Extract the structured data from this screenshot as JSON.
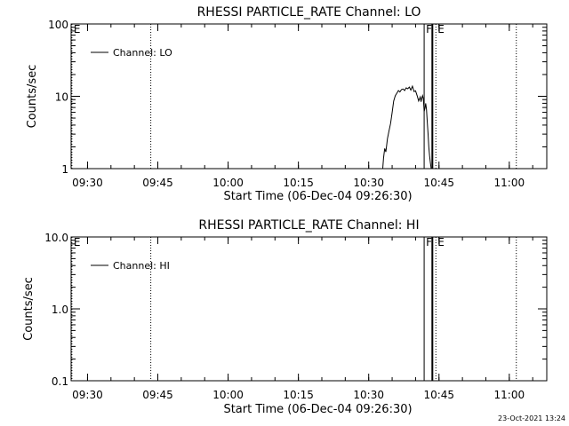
{
  "footer": {
    "timestamp": "23-Oct-2021 13:24"
  },
  "chart_data": [
    {
      "type": "line",
      "title": "RHESSI PARTICLE_RATE Channel: LO",
      "xlabel": "Start Time (06-Dec-04 09:26:30)",
      "ylabel": "Counts/sec",
      "y_scale": "log",
      "xlim": [
        "09:26:30",
        "11:08:00"
      ],
      "ylim": [
        1,
        100
      ],
      "x_ticks": [
        "09:30",
        "09:45",
        "10:00",
        "10:15",
        "10:30",
        "10:45",
        "11:00"
      ],
      "y_ticks": [
        {
          "value": 1,
          "label": "1"
        },
        {
          "value": 10,
          "label": "10"
        },
        {
          "value": 100,
          "label": "100"
        }
      ],
      "legend": {
        "position": "top-left",
        "entries": [
          "Channel: LO"
        ]
      },
      "grid": false,
      "markers": [
        {
          "time": "09:26:40",
          "style": "dotted",
          "label": "E"
        },
        {
          "time": "09:43:30",
          "style": "dotted",
          "label": ""
        },
        {
          "time": "10:41:50",
          "style": "solid",
          "label": "F"
        },
        {
          "time": "10:43:35",
          "style": "solid-thick",
          "label": ""
        },
        {
          "time": "10:44:20",
          "style": "dotted",
          "label": "E"
        },
        {
          "time": "11:01:30",
          "style": "dotted",
          "label": ""
        }
      ],
      "series": [
        {
          "name": "Channel: LO",
          "x": [
            "10:33:00",
            "10:33:10",
            "10:33:25",
            "10:33:40",
            "10:34:00",
            "10:34:20",
            "10:34:40",
            "10:35:00",
            "10:35:20",
            "10:35:40",
            "10:36:00",
            "10:36:20",
            "10:36:40",
            "10:37:00",
            "10:37:20",
            "10:37:40",
            "10:38:00",
            "10:38:20",
            "10:38:40",
            "10:39:00",
            "10:39:20",
            "10:39:40",
            "10:40:00",
            "10:40:20",
            "10:40:40",
            "10:41:00",
            "10:41:10",
            "10:41:20",
            "10:41:30",
            "10:41:40",
            "10:41:50",
            "10:42:00",
            "10:42:10",
            "10:42:20",
            "10:42:30",
            "10:42:40",
            "10:42:50",
            "10:43:00",
            "10:43:10",
            "10:43:20"
          ],
          "values": [
            1.0,
            1.4,
            1.9,
            1.7,
            2.6,
            3.3,
            4.2,
            6.0,
            8.6,
            10.2,
            11.0,
            12.0,
            11.5,
            12.4,
            12.6,
            12.0,
            13.1,
            12.7,
            13.4,
            12.2,
            13.8,
            11.6,
            11.9,
            10.2,
            8.6,
            9.8,
            8.4,
            9.4,
            10.2,
            9.2,
            6.2,
            6.8,
            8.0,
            6.6,
            4.4,
            3.0,
            2.0,
            1.5,
            1.2,
            1.0
          ]
        }
      ]
    },
    {
      "type": "line",
      "title": "RHESSI PARTICLE_RATE Channel: HI",
      "xlabel": "Start Time (06-Dec-04 09:26:30)",
      "ylabel": "Counts/sec",
      "y_scale": "log",
      "xlim": [
        "09:26:30",
        "11:08:00"
      ],
      "ylim": [
        0.1,
        10
      ],
      "x_ticks": [
        "09:30",
        "09:45",
        "10:00",
        "10:15",
        "10:30",
        "10:45",
        "11:00"
      ],
      "y_ticks": [
        {
          "value": 0.1,
          "label": "0.1"
        },
        {
          "value": 1,
          "label": "1.0"
        },
        {
          "value": 10,
          "label": "10.0"
        }
      ],
      "legend": {
        "position": "top-left",
        "entries": [
          "Channel: HI"
        ]
      },
      "grid": false,
      "markers": [
        {
          "time": "09:26:40",
          "style": "dotted",
          "label": "E"
        },
        {
          "time": "09:43:30",
          "style": "dotted",
          "label": ""
        },
        {
          "time": "10:41:50",
          "style": "solid",
          "label": "F"
        },
        {
          "time": "10:43:35",
          "style": "solid-thick",
          "label": ""
        },
        {
          "time": "10:44:20",
          "style": "dotted",
          "label": "E"
        },
        {
          "time": "11:01:30",
          "style": "dotted",
          "label": ""
        }
      ],
      "series": [
        {
          "name": "Channel: HI",
          "x": [],
          "values": []
        }
      ]
    }
  ]
}
